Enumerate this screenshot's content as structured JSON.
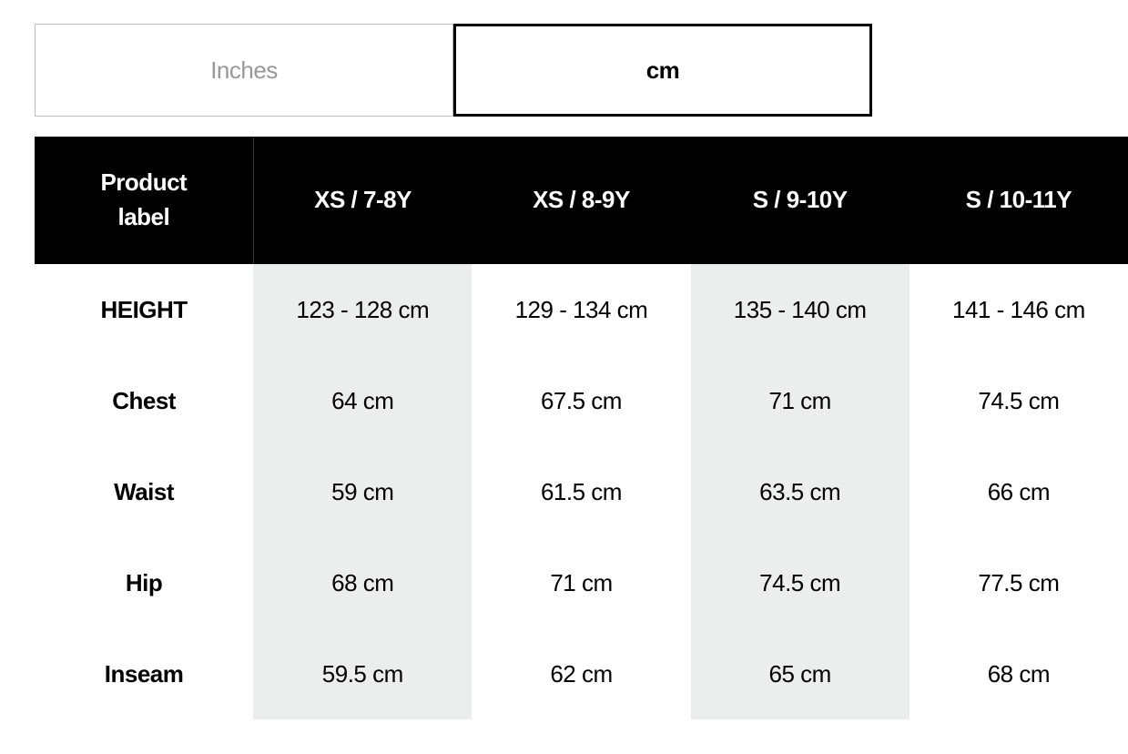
{
  "unit_tabs": {
    "inactive_label": "Inches",
    "active_label": "cm"
  },
  "size_table": {
    "type": "table",
    "background_color": "#ffffff",
    "header_bg": "#000000",
    "header_text_color": "#ffffff",
    "row_label_color": "#000000",
    "cell_text_color": "#000000",
    "shaded_bg": "#eceeee",
    "plain_bg": "#ffffff",
    "font_size_header": 26,
    "font_size_body": 26,
    "columns": [
      "Product\nlabel",
      "XS / 7-8Y",
      "XS / 8-9Y",
      "S / 9-10Y",
      "S / 10-11Y"
    ],
    "rows": [
      {
        "label": "HEIGHT",
        "cells": [
          "123 - 128 cm",
          "129 - 134 cm",
          "135 - 140 cm",
          "141 - 146 cm"
        ]
      },
      {
        "label": "Chest",
        "cells": [
          "64 cm",
          "67.5 cm",
          "71 cm",
          "74.5 cm"
        ]
      },
      {
        "label": "Waist",
        "cells": [
          "59 cm",
          "61.5 cm",
          "63.5 cm",
          "66 cm"
        ]
      },
      {
        "label": "Hip",
        "cells": [
          "68 cm",
          "71 cm",
          "74.5 cm",
          "77.5 cm"
        ]
      },
      {
        "label": "Inseam",
        "cells": [
          "59.5 cm",
          "62 cm",
          "65 cm",
          "68 cm"
        ]
      }
    ],
    "column_shading": [
      "label",
      "shade",
      "plain",
      "shade",
      "plain"
    ]
  }
}
